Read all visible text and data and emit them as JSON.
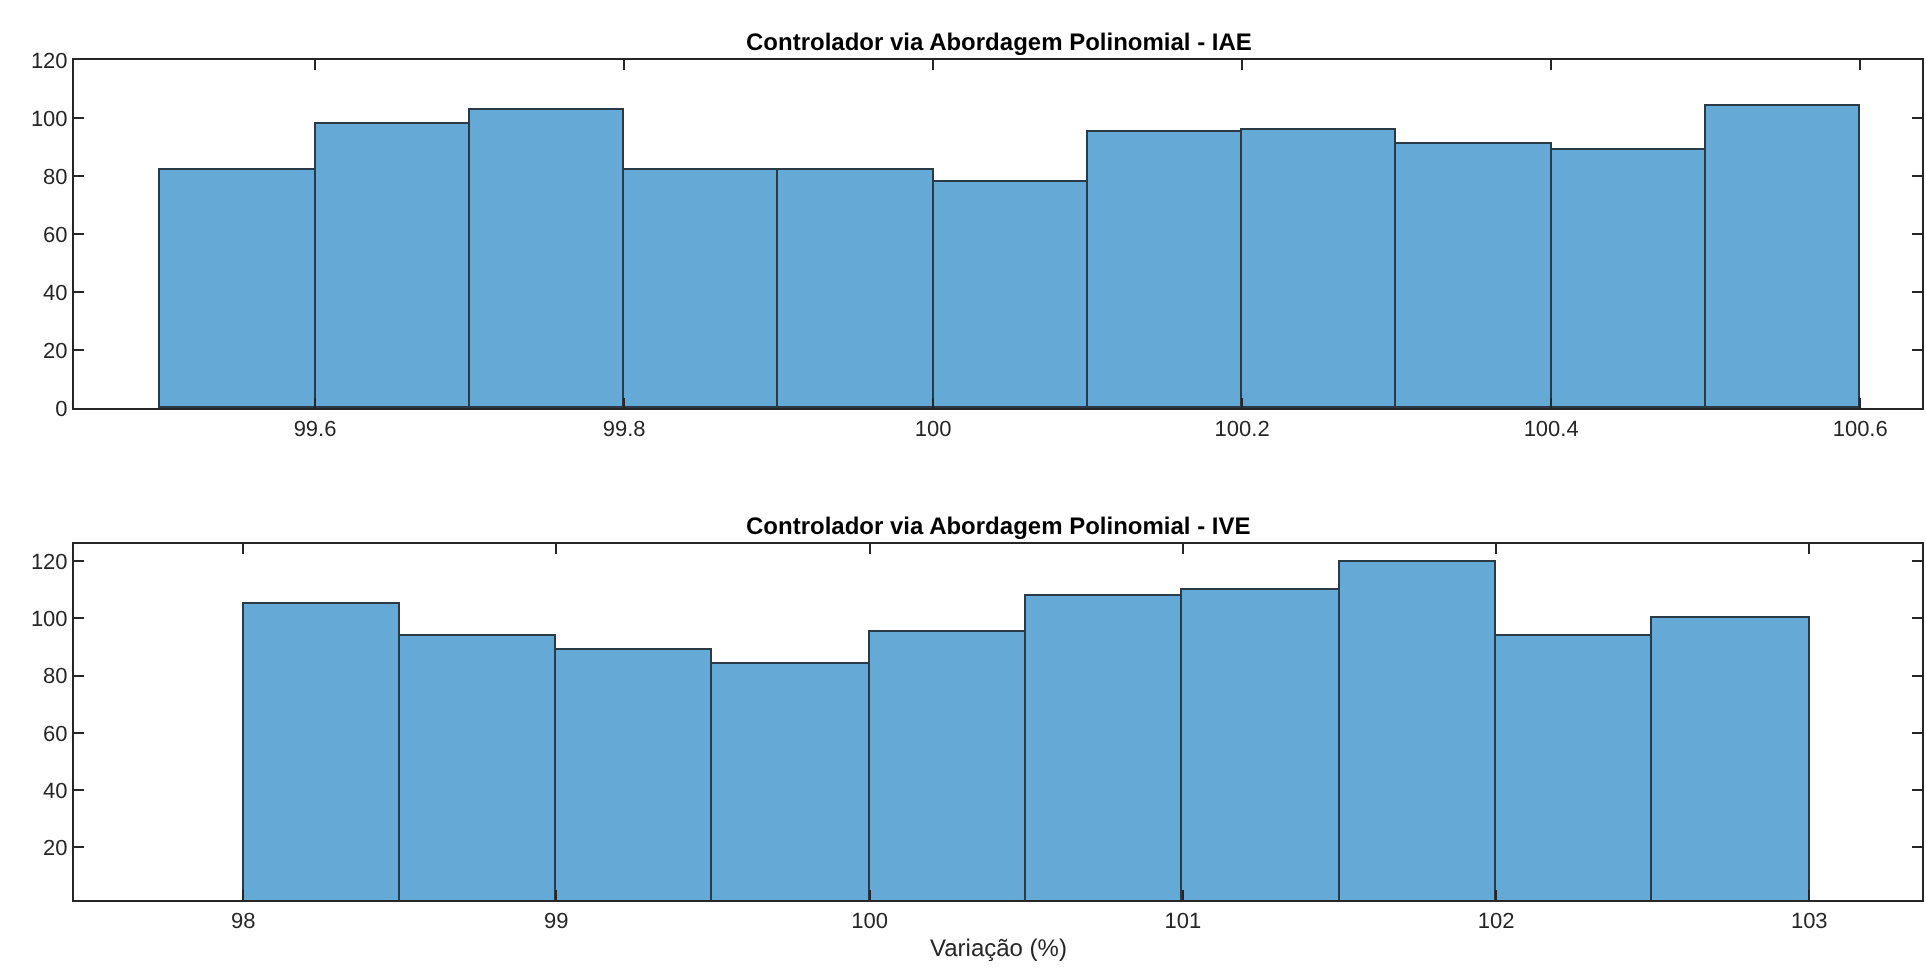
{
  "chart_data": [
    {
      "type": "histogram",
      "title": "Controlador via Abordagem Polinomial - IAE",
      "bins": [
        99.5,
        99.6,
        99.7,
        99.8,
        99.9,
        100.0,
        100.1,
        100.2,
        100.3,
        100.4,
        100.5,
        100.6
      ],
      "values": [
        82,
        98,
        103,
        82,
        82,
        78,
        95,
        96,
        91,
        89,
        104
      ],
      "color": "#65a9d6",
      "xlim": [
        99.444,
        100.64
      ],
      "xticks": [
        99.6,
        99.8,
        100,
        100.2,
        100.4,
        100.6
      ],
      "ylim": [
        0,
        120
      ],
      "yticks": [
        0,
        20,
        40,
        60,
        80,
        100,
        120
      ]
    },
    {
      "type": "histogram",
      "title": "Controlador via Abordagem Polinomial - IVE",
      "xlabel": "Variação (%)",
      "bins": [
        98.0,
        98.5,
        99.0,
        99.5,
        100.0,
        100.5,
        101.0,
        101.5,
        102.0,
        102.5,
        103.0
      ],
      "values": [
        105,
        94,
        89,
        84,
        95,
        108,
        110,
        120,
        94,
        100
      ],
      "color": "#65a9d6",
      "xlim": [
        97.46,
        103.36
      ],
      "xticks": [
        98,
        99,
        100,
        101,
        102,
        103
      ],
      "ylim": [
        1.6,
        126
      ],
      "yticks": [
        20,
        40,
        60,
        80,
        100,
        120
      ]
    }
  ]
}
